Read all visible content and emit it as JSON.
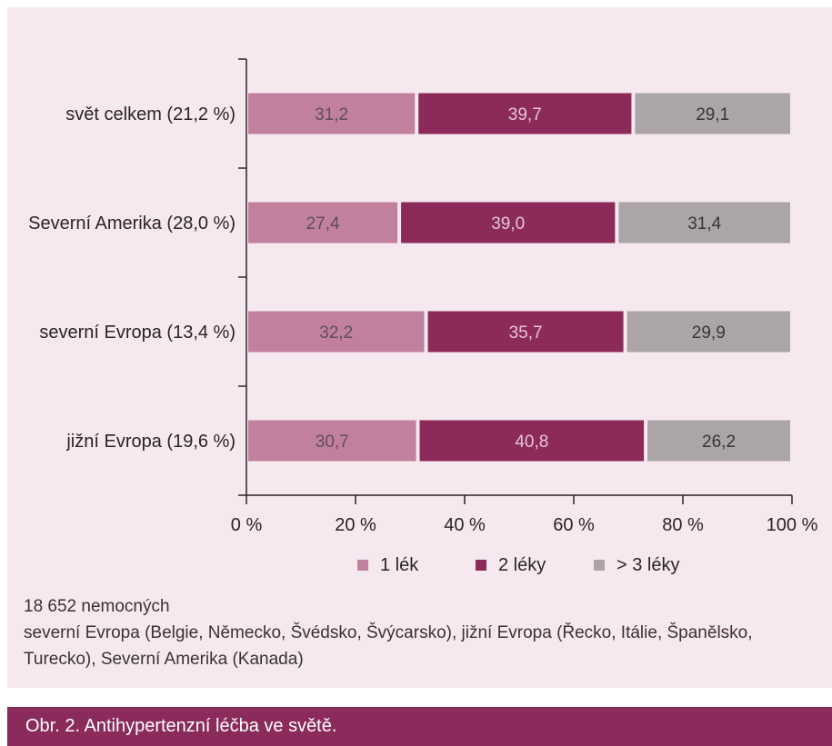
{
  "chart_data": {
    "type": "bar",
    "orientation": "horizontal",
    "stacked": true,
    "categories": [
      "svět celkem (21,2 %)",
      "Severní Amerika (28,0 %)",
      "severní Evropa (13,4 %)",
      "jižní Evropa (19,6 %)"
    ],
    "series": [
      {
        "name": "1 lék",
        "color": "#c2809f",
        "label_color": "#5e4e56",
        "values": [
          31.2,
          27.4,
          32.2,
          30.7
        ],
        "labels": [
          "31,2",
          "27,4",
          "32,2",
          "30,7"
        ]
      },
      {
        "name": "2 léky",
        "color": "#8c2a5a",
        "label_color": "#e6c6d6",
        "values": [
          39.7,
          39.0,
          35.7,
          40.8
        ],
        "labels": [
          "39,7",
          "39,0",
          "35,7",
          "40,8"
        ]
      },
      {
        "name": "> 3 léky",
        "color": "#aba5a9",
        "label_color": "#3a3436",
        "values": [
          29.1,
          31.4,
          29.9,
          26.2
        ],
        "labels": [
          "29,1",
          "31,4",
          "29,9",
          "26,2"
        ]
      }
    ],
    "xlim": [
      0,
      100
    ],
    "x_ticks": [
      0,
      20,
      40,
      60,
      80,
      100
    ],
    "x_tick_labels": [
      "0 %",
      "20 %",
      "40 %",
      "60 %",
      "80 %",
      "100 %"
    ],
    "legend_position": "bottom",
    "grid": false
  },
  "notes": [
    "18 652 nemocných",
    "severní Evropa (Belgie, Německo, Švédsko, Švýcarsko), jižní Evropa (Řecko, Itálie, Španělsko, Turecko), Severní Amerika (Kanada)"
  ],
  "caption": "Obr. 2. Antihypertenzní léčba ve světě."
}
